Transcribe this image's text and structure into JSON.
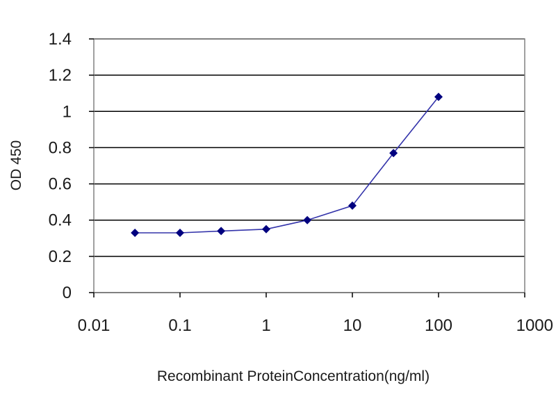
{
  "chart_data": {
    "type": "line",
    "title": "",
    "xlabel": "Recombinant ProteinConcentration(ng/ml)",
    "ylabel": "OD 450",
    "x_scale": "log",
    "xlim": [
      0.01,
      1000
    ],
    "ylim": [
      0,
      1.4
    ],
    "x_tick_labels": [
      "0.01",
      "0.1",
      "1",
      "10",
      "100",
      "1000"
    ],
    "y_tick_labels": [
      "0",
      "0.2",
      "0.4",
      "0.6",
      "0.8",
      "1",
      "1.2",
      "1.4"
    ],
    "grid": "horizontal",
    "legend": "none",
    "series": [
      {
        "x": [
          0.03,
          0.1,
          0.3,
          1,
          3,
          10,
          30,
          100
        ],
        "y": [
          0.33,
          0.33,
          0.34,
          0.35,
          0.4,
          0.48,
          0.77,
          1.08
        ]
      }
    ],
    "colors": {
      "line": "#3333aa",
      "marker": "#00007f",
      "gridline": "#000000",
      "plot_border": "#808080"
    }
  }
}
